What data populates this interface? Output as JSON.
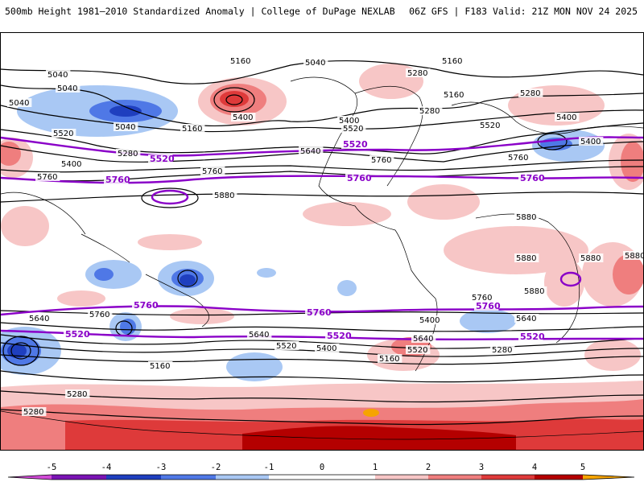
{
  "header": {
    "left_title": "500mb Height 1981–2010 Standardized Anomaly | College of DuPage NEXLAB",
    "right_title": "06Z GFS | F183 Valid: 21Z MON NOV 24 2025"
  },
  "colors": {
    "anom_minus5": "#d04ad6",
    "anom_minus4": "#7a14b4",
    "anom_minus3": "#1f3fbf",
    "anom_minus2": "#4f78e6",
    "anom_minus1": "#a9c8f4",
    "anom_neutral": "#ffffff",
    "anom_plus1": "#f7c6c6",
    "anom_plus2": "#ef7e7e",
    "anom_plus3": "#de3a3a",
    "anom_plus4": "#b40000",
    "anom_plus5": "#f6a400",
    "contour_black": "#000000",
    "contour_purple": "#8a00c8"
  },
  "colorbar": {
    "ticks": [
      "-5",
      "-4",
      "-3",
      "-2",
      "-1",
      "0",
      "1",
      "2",
      "3",
      "4",
      "5"
    ]
  },
  "contour_labels": {
    "black": [
      "5040",
      "5040",
      "5040",
      "5040",
      "5040",
      "5160",
      "5160",
      "5160",
      "5160",
      "5160",
      "5160",
      "5280",
      "5280",
      "5280",
      "5280",
      "5280",
      "5280",
      "5280",
      "5400",
      "5400",
      "5400",
      "5400",
      "5400",
      "5400",
      "5400",
      "5520",
      "5520",
      "5520",
      "5520",
      "5520",
      "5640",
      "5640",
      "5640",
      "5640",
      "5640",
      "5760",
      "5760",
      "5760",
      "5760",
      "5760",
      "5760",
      "5880",
      "5880",
      "5880",
      "5880",
      "5880",
      "5880"
    ],
    "purple": [
      "5520",
      "5520",
      "5520",
      "5520",
      "5520",
      "5760",
      "5760",
      "5760",
      "5760",
      "5760",
      "5760"
    ]
  }
}
